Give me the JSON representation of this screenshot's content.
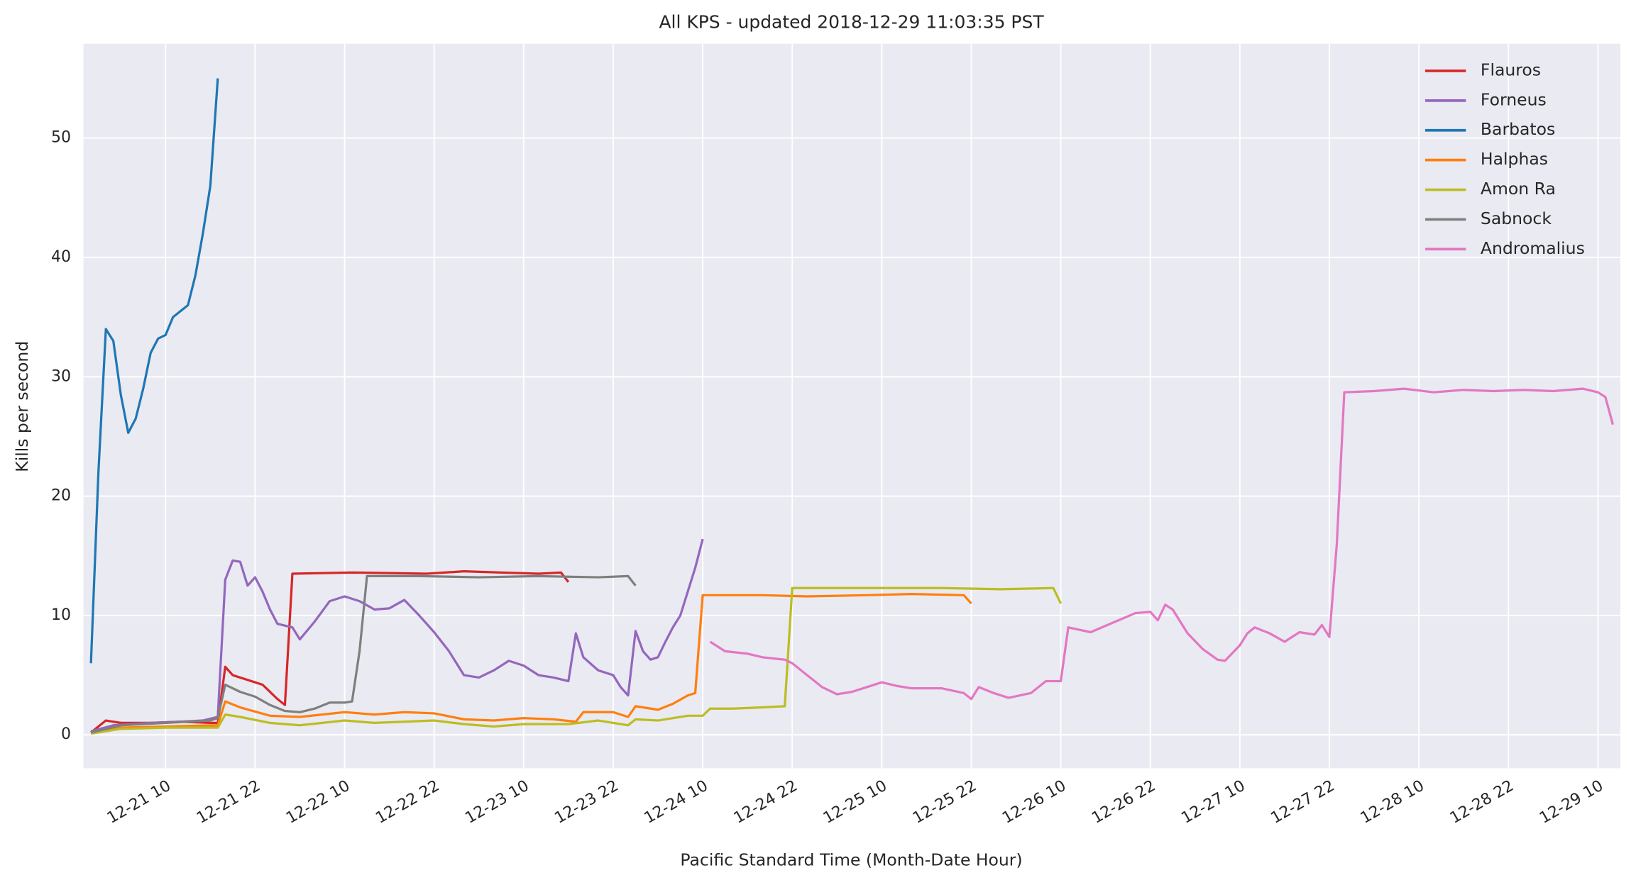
{
  "chart_data": {
    "type": "line",
    "title": "All KPS - updated 2018-12-29 11:03:35 PST",
    "x_label": "Pacific Standard Time (Month-Date Hour)",
    "y_label": "Kills per second",
    "xlim": [
      "12-20 23",
      "12-29 13"
    ],
    "xticks": [
      "12-21 10",
      "12-21 22",
      "12-22 10",
      "12-22 22",
      "12-23 10",
      "12-23 22",
      "12-24 10",
      "12-24 22",
      "12-25 10",
      "12-25 22",
      "12-26 10",
      "12-26 22",
      "12-27 10",
      "12-27 22",
      "12-28 10",
      "12-28 22",
      "12-29 10"
    ],
    "ylim": [
      -2.8,
      57.9
    ],
    "yticks": [
      0,
      10,
      20,
      30,
      40,
      50
    ],
    "grid": true,
    "legend_position": "upper right",
    "series": [
      {
        "name": "Flauros",
        "color": "#d62728",
        "x": [
          "12-21 00",
          "12-21 02",
          "12-21 04",
          "12-21 08",
          "12-21 12",
          "12-21 16",
          "12-21 17",
          "12-21 18",
          "12-21 19",
          "12-21 21",
          "12-21 23",
          "12-22 01",
          "12-22 02",
          "12-22 03",
          "12-22 11",
          "12-22 21",
          "12-23 02",
          "12-23 07",
          "12-23 12",
          "12-23 15",
          "12-23 16"
        ],
        "values": [
          0.2,
          1.2,
          1.0,
          1.0,
          1.1,
          1.0,
          1.0,
          5.7,
          5.0,
          4.6,
          4.2,
          3.0,
          2.5,
          13.5,
          13.6,
          13.5,
          13.7,
          13.6,
          13.5,
          13.6,
          12.8
        ]
      },
      {
        "name": "Forneus",
        "color": "#9467bd",
        "x": [
          "12-21 00",
          "12-21 03",
          "12-21 08",
          "12-21 12",
          "12-21 15",
          "12-21 17",
          "12-21 18",
          "12-21 19",
          "12-21 20",
          "12-21 21",
          "12-21 22",
          "12-21 23",
          "12-22 00",
          "12-22 01",
          "12-22 03",
          "12-22 04",
          "12-22 06",
          "12-22 08",
          "12-22 10",
          "12-22 12",
          "12-22 14",
          "12-22 16",
          "12-22 18",
          "12-22 20",
          "12-22 22",
          "12-23 00",
          "12-23 02",
          "12-23 04",
          "12-23 06",
          "12-23 08",
          "12-23 10",
          "12-23 12",
          "12-23 14",
          "12-23 16",
          "12-23 17",
          "12-23 18",
          "12-23 20",
          "12-23 22",
          "12-23 23",
          "12-24 00",
          "12-24 01",
          "12-24 02",
          "12-24 03",
          "12-24 04",
          "12-24 05",
          "12-24 06",
          "12-24 07",
          "12-24 08",
          "12-24 09",
          "12-24 10"
        ],
        "values": [
          0.3,
          0.8,
          1.0,
          1.1,
          1.2,
          1.5,
          13,
          14.6,
          14.5,
          12.5,
          13.2,
          12,
          10.5,
          9.3,
          9.0,
          8.0,
          9.5,
          11.2,
          11.6,
          11.2,
          10.5,
          10.6,
          11.3,
          10.0,
          8.6,
          7.0,
          5.0,
          4.8,
          5.4,
          6.2,
          5.8,
          5.0,
          4.8,
          4.5,
          8.5,
          6.5,
          5.4,
          5.0,
          4.0,
          3.3,
          8.7,
          7.0,
          6.3,
          6.5,
          7.8,
          9.0,
          10.0,
          12.0,
          14.0,
          16.4
        ]
      },
      {
        "name": "Barbatos",
        "color": "#1f77b4",
        "x": [
          "12-21 00",
          "12-21 01",
          "12-21 02",
          "12-21 03",
          "12-21 04",
          "12-21 05",
          "12-21 06",
          "12-21 07",
          "12-21 08",
          "12-21 09",
          "12-21 10",
          "12-21 11",
          "12-21 12",
          "12-21 13",
          "12-21 14",
          "12-21 15",
          "12-21 16",
          "12-21 17"
        ],
        "values": [
          6,
          22,
          34,
          33,
          28.5,
          25.3,
          26.5,
          29,
          32,
          33.2,
          33.5,
          35,
          35.5,
          36,
          38.5,
          42,
          46,
          55
        ]
      },
      {
        "name": "Halphas",
        "color": "#ff7f0e",
        "x": [
          "12-21 00",
          "12-21 04",
          "12-21 10",
          "12-21 17",
          "12-21 18",
          "12-21 20",
          "12-22 00",
          "12-22 04",
          "12-22 10",
          "12-22 14",
          "12-22 18",
          "12-22 22",
          "12-23 02",
          "12-23 06",
          "12-23 10",
          "12-23 14",
          "12-23 17",
          "12-23 18",
          "12-23 22",
          "12-24 00",
          "12-24 01",
          "12-24 04",
          "12-24 06",
          "12-24 08",
          "12-24 09",
          "12-24 10",
          "12-24 18",
          "12-25 00",
          "12-25 08",
          "12-25 14",
          "12-25 21",
          "12-25 22"
        ],
        "values": [
          0.2,
          0.6,
          0.7,
          0.8,
          2.8,
          2.3,
          1.6,
          1.5,
          1.9,
          1.7,
          1.9,
          1.8,
          1.3,
          1.2,
          1.4,
          1.3,
          1.1,
          1.9,
          1.9,
          1.5,
          2.4,
          2.1,
          2.6,
          3.3,
          3.5,
          11.7,
          11.7,
          11.6,
          11.7,
          11.8,
          11.7,
          11.0
        ]
      },
      {
        "name": "Amon Ra",
        "color": "#bcbd22",
        "x": [
          "12-21 00",
          "12-21 04",
          "12-21 10",
          "12-21 17",
          "12-21 18",
          "12-21 20",
          "12-22 00",
          "12-22 04",
          "12-22 10",
          "12-22 14",
          "12-22 18",
          "12-22 22",
          "12-23 02",
          "12-23 06",
          "12-23 10",
          "12-23 16",
          "12-23 20",
          "12-24 00",
          "12-24 01",
          "12-24 04",
          "12-24 08",
          "12-24 10",
          "12-24 11",
          "12-24 14",
          "12-24 18",
          "12-24 21",
          "12-24 22",
          "12-25 06",
          "12-25 18",
          "12-26 02",
          "12-26 09",
          "12-26 10"
        ],
        "values": [
          0.1,
          0.5,
          0.6,
          0.6,
          1.7,
          1.5,
          1.0,
          0.8,
          1.2,
          1.0,
          1.1,
          1.2,
          0.9,
          0.7,
          0.9,
          0.9,
          1.2,
          0.8,
          1.3,
          1.2,
          1.6,
          1.6,
          2.2,
          2.2,
          2.3,
          2.4,
          12.3,
          12.3,
          12.3,
          12.2,
          12.3,
          11.0
        ]
      },
      {
        "name": "Sabnock",
        "color": "#7f7f7f",
        "x": [
          "12-21 00",
          "12-21 04",
          "12-21 10",
          "12-21 16",
          "12-21 17",
          "12-21 18",
          "12-21 20",
          "12-21 22",
          "12-22 00",
          "12-22 02",
          "12-22 04",
          "12-22 06",
          "12-22 08",
          "12-22 10",
          "12-22 11",
          "12-22 12",
          "12-22 13",
          "12-22 20",
          "12-23 04",
          "12-23 12",
          "12-23 20",
          "12-24 00",
          "12-24 01"
        ],
        "values": [
          0.2,
          0.8,
          1.0,
          1.2,
          1.4,
          4.2,
          3.6,
          3.2,
          2.5,
          2.0,
          1.9,
          2.2,
          2.7,
          2.7,
          2.8,
          7.0,
          13.3,
          13.3,
          13.2,
          13.3,
          13.2,
          13.3,
          12.5
        ]
      },
      {
        "name": "Andromalius",
        "color": "#e377c2",
        "x": [
          "12-24 11",
          "12-24 13",
          "12-24 16",
          "12-24 18",
          "12-24 21",
          "12-24 22",
          "12-25 00",
          "12-25 02",
          "12-25 04",
          "12-25 06",
          "12-25 08",
          "12-25 10",
          "12-25 12",
          "12-25 14",
          "12-25 18",
          "12-25 21",
          "12-25 22",
          "12-25 23",
          "12-26 01",
          "12-26 03",
          "12-26 06",
          "12-26 08",
          "12-26 10",
          "12-26 11",
          "12-26 14",
          "12-26 17",
          "12-26 20",
          "12-26 22",
          "12-26 23",
          "12-27 00",
          "12-27 01",
          "12-27 03",
          "12-27 05",
          "12-27 07",
          "12-27 08",
          "12-27 10",
          "12-27 11",
          "12-27 12",
          "12-27 14",
          "12-27 16",
          "12-27 18",
          "12-27 20",
          "12-27 21",
          "12-27 22",
          "12-27 23",
          "12-28 00",
          "12-28 04",
          "12-28 08",
          "12-28 12",
          "12-28 16",
          "12-28 20",
          "12-29 00",
          "12-29 04",
          "12-29 08",
          "12-29 10",
          "12-29 11",
          "12-29 12"
        ],
        "values": [
          7.8,
          7.0,
          6.8,
          6.5,
          6.3,
          6.0,
          5.0,
          4.0,
          3.4,
          3.6,
          4.0,
          4.4,
          4.1,
          3.9,
          3.9,
          3.5,
          3.0,
          4.0,
          3.5,
          3.1,
          3.5,
          4.5,
          4.5,
          9.0,
          8.6,
          9.4,
          10.2,
          10.3,
          9.6,
          10.9,
          10.5,
          8.5,
          7.2,
          6.3,
          6.2,
          7.5,
          8.5,
          9.0,
          8.5,
          7.8,
          8.6,
          8.4,
          9.2,
          8.2,
          16.0,
          28.7,
          28.8,
          29.0,
          28.7,
          28.9,
          28.8,
          28.9,
          28.8,
          29.0,
          28.7,
          28.3,
          26.0
        ]
      }
    ]
  }
}
